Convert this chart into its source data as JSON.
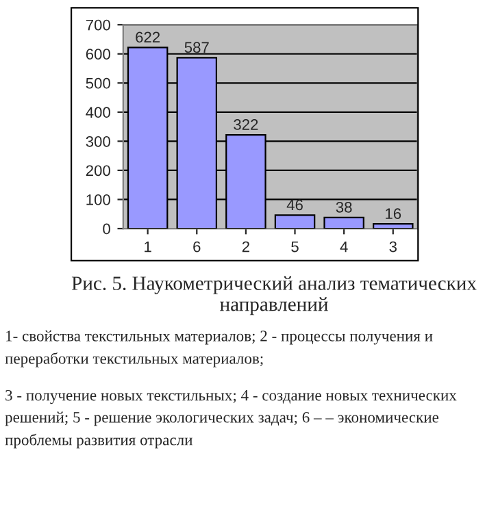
{
  "chart_data": {
    "type": "bar",
    "title": "Рис. 5. Наукометрический анализ тематических направлений",
    "categories": [
      "1",
      "6",
      "2",
      "5",
      "4",
      "3"
    ],
    "values": [
      622,
      587,
      322,
      46,
      38,
      16
    ],
    "color": "#9999ff",
    "ylim": [
      0,
      700
    ],
    "yticks": [
      0,
      100,
      200,
      300,
      400,
      500,
      600,
      700
    ],
    "grid": "y",
    "data_labels": true,
    "legend": false,
    "annotations": [
      "1- свойства текстильных материалов; 2 - процессы получения и переработки текстильных материалов;",
      "3 - получение новых текстильных; 4 - создание новых технических решений; 5 - решение экологических задач; 6 – – экономические проблемы развития отрасли"
    ]
  }
}
